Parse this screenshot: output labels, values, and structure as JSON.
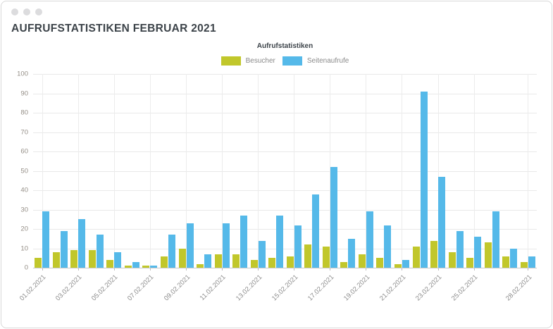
{
  "window": {
    "title": "AUFRUFSTATISTIKEN FEBRUAR 2021",
    "dots_icon": "window-dots"
  },
  "colors": {
    "besucher": "#c1c72b",
    "seitenaufrufe": "#55b9e9",
    "title_text": "#3c4349",
    "axis_text": "#948e86",
    "gridline": "#e9e9e9"
  },
  "chart_data": {
    "type": "bar",
    "title": "Aufrufstatistiken",
    "categories": [
      "01.02.2021",
      "02.02.2021",
      "03.02.2021",
      "04.02.2021",
      "05.02.2021",
      "06.02.2021",
      "07.02.2021",
      "08.02.2021",
      "09.02.2021",
      "10.02.2021",
      "11.02.2021",
      "12.02.2021",
      "13.02.2021",
      "14.02.2021",
      "15.02.2021",
      "16.02.2021",
      "17.02.2021",
      "18.02.2021",
      "19.02.2021",
      "20.02.2021",
      "21.02.2021",
      "22.02.2021",
      "23.02.2021",
      "24.02.2021",
      "25.02.2021",
      "26.02.2021",
      "27.02.2021",
      "28.02.2021"
    ],
    "series": [
      {
        "name": "Besucher",
        "color": "#c1c72b",
        "values": [
          5,
          8,
          9,
          9,
          4,
          1,
          1,
          6,
          10,
          2,
          7,
          7,
          4,
          5,
          6,
          12,
          11,
          3,
          7,
          5,
          2,
          11,
          14,
          8,
          5,
          13,
          6,
          3
        ]
      },
      {
        "name": "Seitenaufrufe",
        "color": "#55b9e9",
        "values": [
          29,
          19,
          25,
          17,
          8,
          3,
          1,
          17,
          23,
          7,
          23,
          27,
          14,
          27,
          22,
          38,
          52,
          15,
          29,
          22,
          4,
          91,
          47,
          19,
          16,
          29,
          10,
          6
        ]
      }
    ],
    "ylim": [
      0,
      100
    ],
    "y_ticks": [
      0,
      10,
      20,
      30,
      40,
      50,
      60,
      70,
      80,
      90,
      100
    ],
    "x_tick_indices": [
      0,
      2,
      4,
      6,
      8,
      10,
      12,
      14,
      16,
      18,
      20,
      22,
      24,
      27
    ],
    "x_tick_labels": [
      "01.02.2021",
      "03.02.2021",
      "05.02.2021",
      "07.02.2021",
      "09.02.2021",
      "11.02.2021",
      "13.02.2021",
      "15.02.2021",
      "17.02.2021",
      "19.02.2021",
      "21.02.2021",
      "23.02.2021",
      "25.02.2021",
      "28.02.2021"
    ],
    "grid": true,
    "legend_position": "top"
  }
}
